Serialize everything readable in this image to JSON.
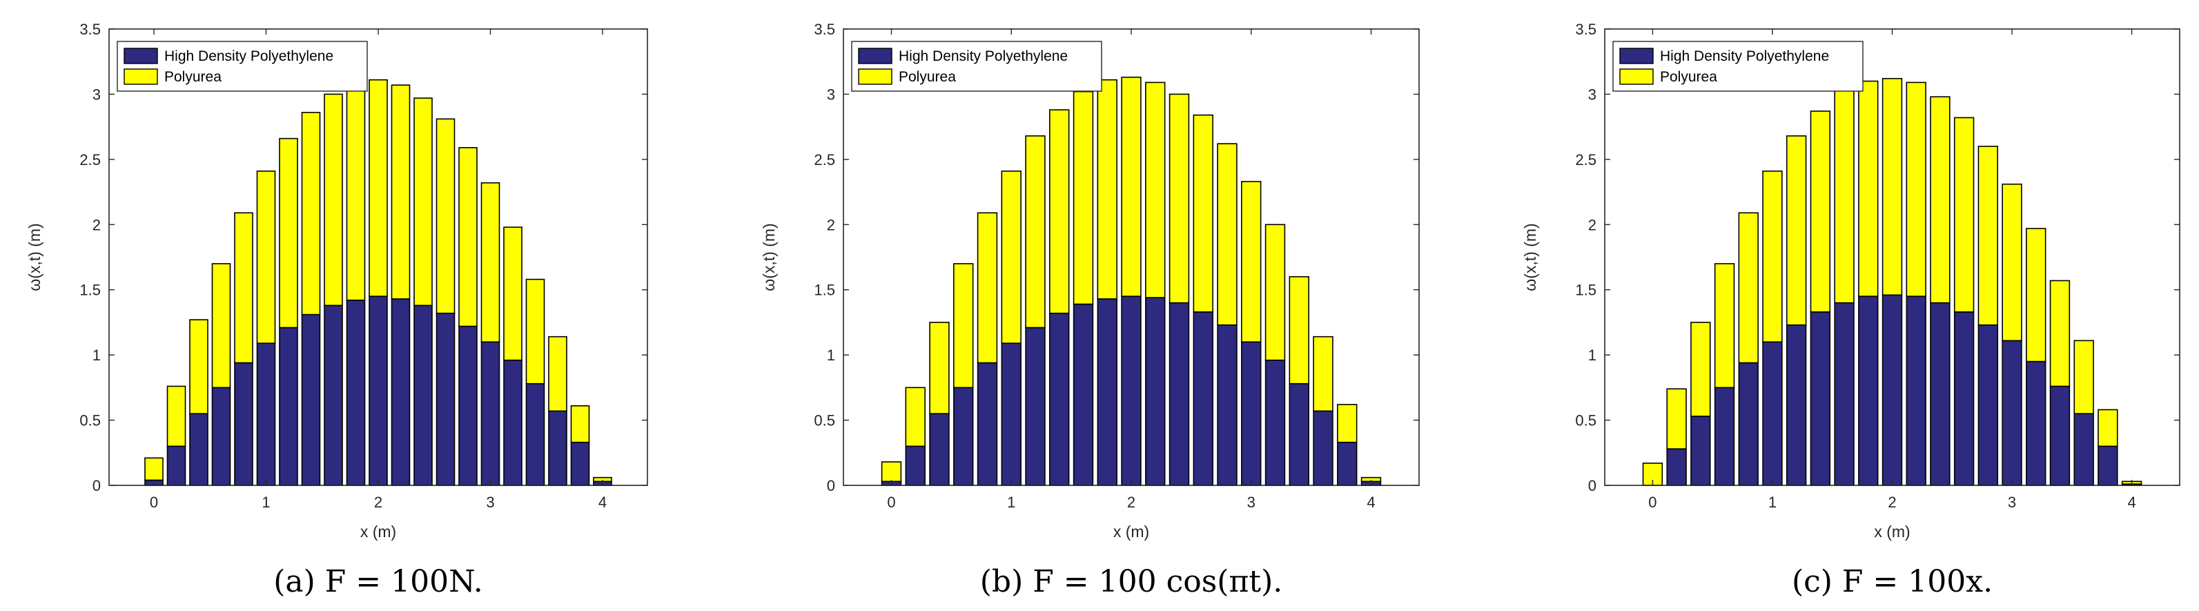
{
  "chart_data": [
    {
      "type": "bar",
      "stacked": true,
      "caption": "(a) F = 100N.",
      "xlabel": "x (m)",
      "ylabel": "ω(x,t) (m)",
      "xlim": [
        -0.4,
        4.4
      ],
      "ylim": [
        0,
        3.5
      ],
      "xticks": [
        0,
        1,
        2,
        3,
        4
      ],
      "yticks": [
        0,
        0.5,
        1,
        1.5,
        2,
        2.5,
        3,
        3.5
      ],
      "x": [
        0,
        0.2,
        0.4,
        0.6,
        0.8,
        1.0,
        1.2,
        1.4,
        1.6,
        1.8,
        2.0,
        2.2,
        2.4,
        2.6,
        2.8,
        3.0,
        3.2,
        3.4,
        3.6,
        3.8,
        4.0
      ],
      "legend_position": "top-left",
      "series": [
        {
          "name": "High Density Polyethylene",
          "color": "#2e2a80",
          "values": [
            0.04,
            0.3,
            0.55,
            0.75,
            0.94,
            1.09,
            1.21,
            1.31,
            1.38,
            1.42,
            1.45,
            1.43,
            1.38,
            1.32,
            1.22,
            1.1,
            0.96,
            0.78,
            0.57,
            0.33,
            0.03
          ]
        },
        {
          "name": "Polyurea",
          "color": "#ffff00",
          "values": [
            0.17,
            0.46,
            0.72,
            0.95,
            1.15,
            1.32,
            1.45,
            1.55,
            1.62,
            1.66,
            1.66,
            1.64,
            1.59,
            1.49,
            1.37,
            1.22,
            1.02,
            0.8,
            0.57,
            0.28,
            0.03
          ]
        }
      ]
    },
    {
      "type": "bar",
      "stacked": true,
      "caption": "(b) F = 100 cos(πt).",
      "xlabel": "x (m)",
      "ylabel": "ω(x,t) (m)",
      "xlim": [
        -0.4,
        4.4
      ],
      "ylim": [
        0,
        3.5
      ],
      "xticks": [
        0,
        1,
        2,
        3,
        4
      ],
      "yticks": [
        0,
        0.5,
        1,
        1.5,
        2,
        2.5,
        3,
        3.5
      ],
      "x": [
        0,
        0.2,
        0.4,
        0.6,
        0.8,
        1.0,
        1.2,
        1.4,
        1.6,
        1.8,
        2.0,
        2.2,
        2.4,
        2.6,
        2.8,
        3.0,
        3.2,
        3.4,
        3.6,
        3.8,
        4.0
      ],
      "legend_position": "top-left",
      "series": [
        {
          "name": "High Density Polyethylene",
          "color": "#2e2a80",
          "values": [
            0.03,
            0.3,
            0.55,
            0.75,
            0.94,
            1.09,
            1.21,
            1.32,
            1.39,
            1.43,
            1.45,
            1.44,
            1.4,
            1.33,
            1.23,
            1.1,
            0.96,
            0.78,
            0.57,
            0.33,
            0.03
          ]
        },
        {
          "name": "Polyurea",
          "color": "#ffff00",
          "values": [
            0.15,
            0.45,
            0.7,
            0.95,
            1.15,
            1.32,
            1.47,
            1.56,
            1.63,
            1.68,
            1.68,
            1.65,
            1.6,
            1.51,
            1.39,
            1.23,
            1.04,
            0.82,
            0.57,
            0.29,
            0.03
          ]
        }
      ]
    },
    {
      "type": "bar",
      "stacked": true,
      "caption": "(c) F = 100x.",
      "xlabel": "x (m)",
      "ylabel": "ω(x,t) (m)",
      "xlim": [
        -0.4,
        4.4
      ],
      "ylim": [
        0,
        3.5
      ],
      "xticks": [
        0,
        1,
        2,
        3,
        4
      ],
      "yticks": [
        0,
        0.5,
        1,
        1.5,
        2,
        2.5,
        3,
        3.5
      ],
      "x": [
        0,
        0.2,
        0.4,
        0.6,
        0.8,
        1.0,
        1.2,
        1.4,
        1.6,
        1.8,
        2.0,
        2.2,
        2.4,
        2.6,
        2.8,
        3.0,
        3.2,
        3.4,
        3.6,
        3.8,
        4.0
      ],
      "legend_position": "top-left",
      "series": [
        {
          "name": "High Density Polyethylene",
          "color": "#2e2a80",
          "values": [
            0.0,
            0.28,
            0.53,
            0.75,
            0.94,
            1.1,
            1.23,
            1.33,
            1.4,
            1.45,
            1.46,
            1.45,
            1.4,
            1.33,
            1.23,
            1.11,
            0.95,
            0.76,
            0.55,
            0.3,
            0.01
          ]
        },
        {
          "name": "Polyurea",
          "color": "#ffff00",
          "values": [
            0.17,
            0.46,
            0.72,
            0.95,
            1.15,
            1.31,
            1.45,
            1.54,
            1.63,
            1.65,
            1.66,
            1.64,
            1.58,
            1.49,
            1.37,
            1.2,
            1.02,
            0.81,
            0.56,
            0.28,
            0.02
          ]
        }
      ]
    }
  ]
}
